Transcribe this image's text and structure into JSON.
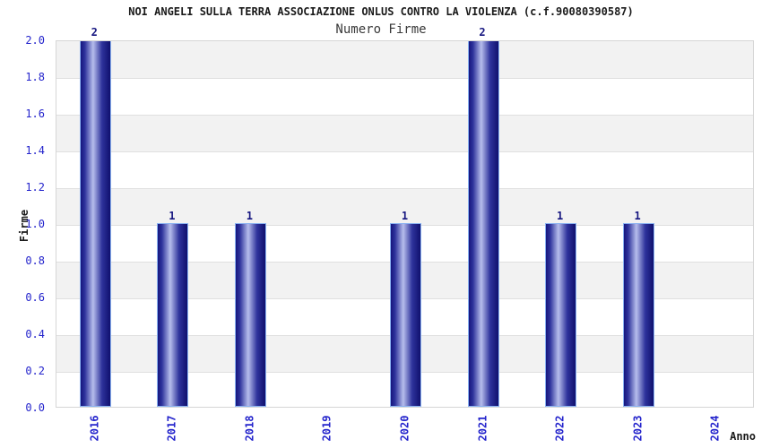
{
  "chart_data": {
    "type": "bar",
    "title": "NOI ANGELI SULLA TERRA ASSOCIAZIONE ONLUS CONTRO LA VIOLENZA (c.f.90080390587)",
    "subtitle": "Numero Firme",
    "xlabel": "Anno",
    "ylabel": "Firme",
    "categories": [
      "2016",
      "2017",
      "2018",
      "2019",
      "2020",
      "2021",
      "2022",
      "2023",
      "2024"
    ],
    "values": [
      2,
      1,
      1,
      0,
      1,
      2,
      1,
      1,
      0
    ],
    "bar_value_labels": [
      "2",
      "1",
      "1",
      "",
      "1",
      "2",
      "1",
      "1",
      ""
    ],
    "ylim": [
      0.0,
      2.0
    ],
    "ytick_step": 0.2,
    "yticks": [
      "0.0",
      "0.2",
      "0.4",
      "0.6",
      "0.8",
      "1.0",
      "1.2",
      "1.4",
      "1.6",
      "1.8",
      "2.0"
    ],
    "grid": "horizontal-alternating-bands",
    "legend": "none",
    "colors": {
      "bar_edge": "#16167e",
      "bar_edge_dark": "#10106e",
      "bar_mid": "#2e339c",
      "bar_highlight": "#b6bdec",
      "bar_border": "#8ab2f2",
      "axis_tick_label": "#2424cc",
      "bar_value_label": "#161680",
      "band_dark": "#f2f2f2",
      "band_light": "#ffffff",
      "grid_line": "#e0e0e0",
      "plot_border": "#d6d6d6",
      "title_text": "#1a1a1a",
      "subtitle_text": "#3a3a3a"
    }
  }
}
